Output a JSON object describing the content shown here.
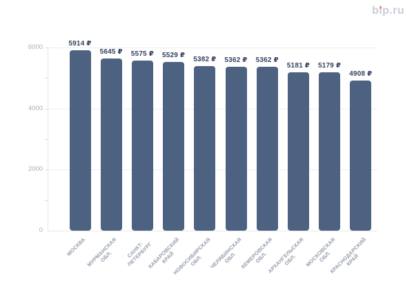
{
  "brand": {
    "logo_text": "bip.ru",
    "logo_color": "#c9cdd9",
    "logo_dot_color": "#f4876b"
  },
  "chart_data": {
    "type": "bar",
    "title": "",
    "xlabel": "",
    "ylabel": "",
    "categories": [
      "МОСКВА",
      "МУРМАНСКАЯ\nОБЛ.",
      "САНКТ-\nПЕТЕРБУРГ",
      "ХАБАРОВСКИЙ\nКРАЙ",
      "НОВОСИБИРСКАЯ\nОБЛ.",
      "ЧЕЛЯБИНСКАЯ\nОБЛ.",
      "КЕМЕРОВСКАЯ\nОБЛ.",
      "АРХАНГЕЛЬСКАЯ\nОБЛ.",
      "МОСКОВСКАЯ\nОБЛ.",
      "КРАСНОДАРСКИЙ\nКРАЙ"
    ],
    "values": [
      5914,
      5645,
      5575,
      5529,
      5382,
      5362,
      5362,
      5181,
      5179,
      4908
    ],
    "value_suffix": " ₽",
    "ylim": [
      0,
      6000
    ],
    "yticks": [
      {
        "value": 0,
        "label": "0"
      },
      {
        "value": 2000,
        "label": "2000"
      },
      {
        "value": 4000,
        "label": "4000"
      },
      {
        "value": 6000,
        "label": "6000"
      }
    ],
    "minor_tick_step": 1000,
    "gridlines_at": [
      2000,
      4000,
      6000
    ],
    "grid_style": "dotted",
    "legend": "none",
    "colors": {
      "bar": "#4d6280",
      "value_label": "#35405e",
      "axis_label": "#a8adbb",
      "category_label": "#949bab",
      "grid": "#d9dde3",
      "axis_line": "#e5e7eb"
    }
  }
}
